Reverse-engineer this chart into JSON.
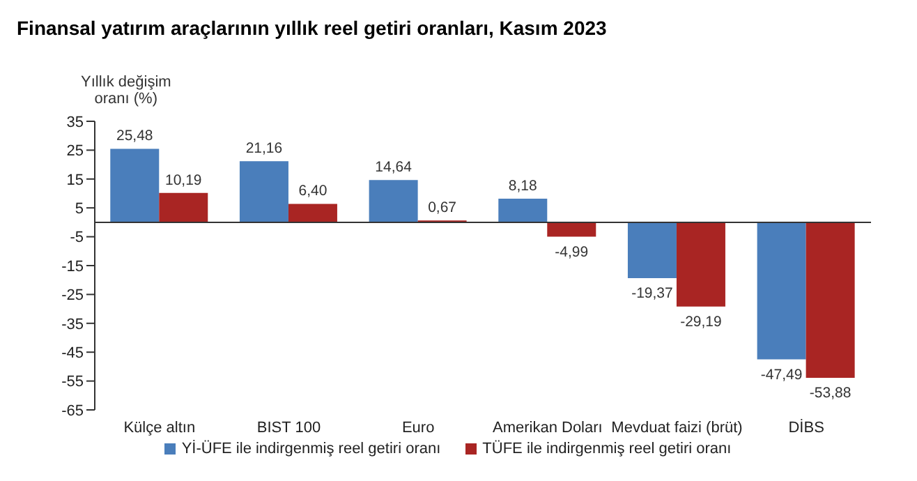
{
  "chart_data": {
    "type": "bar",
    "title": "Finansal yatırım araçlarının yıllık reel getiri oranları, Kasım 2023",
    "ylabel": "Yıllık değişim oranı (%)",
    "categories": [
      "Külçe altın",
      "BIST 100",
      "Euro",
      "Amerikan Doları",
      "Mevduat faizi (brüt)",
      "DİBS"
    ],
    "series": [
      {
        "name": "Yİ-ÜFE ile indirgenmiş reel getiri oranı",
        "color": "#4a7ebb",
        "values": [
          25.48,
          21.16,
          14.64,
          8.18,
          -19.37,
          -47.49
        ],
        "value_labels": [
          "25,48",
          "21,16",
          "14,64",
          "8,18",
          "-19,37",
          "-47,49"
        ]
      },
      {
        "name": "TÜFE ile indirgenmiş reel getiri oranı",
        "color": "#a92523",
        "values": [
          10.19,
          6.4,
          0.67,
          -4.99,
          -29.19,
          -53.88
        ],
        "value_labels": [
          "10,19",
          "6,40",
          "0,67",
          "-4,99",
          "-29,19",
          "-53,88"
        ]
      }
    ],
    "ylim": [
      -65,
      35
    ],
    "yticks": [
      35,
      25,
      15,
      5,
      -5,
      -15,
      -25,
      -35,
      -45,
      -55,
      -65
    ],
    "grid": false,
    "legend": "bottom"
  }
}
